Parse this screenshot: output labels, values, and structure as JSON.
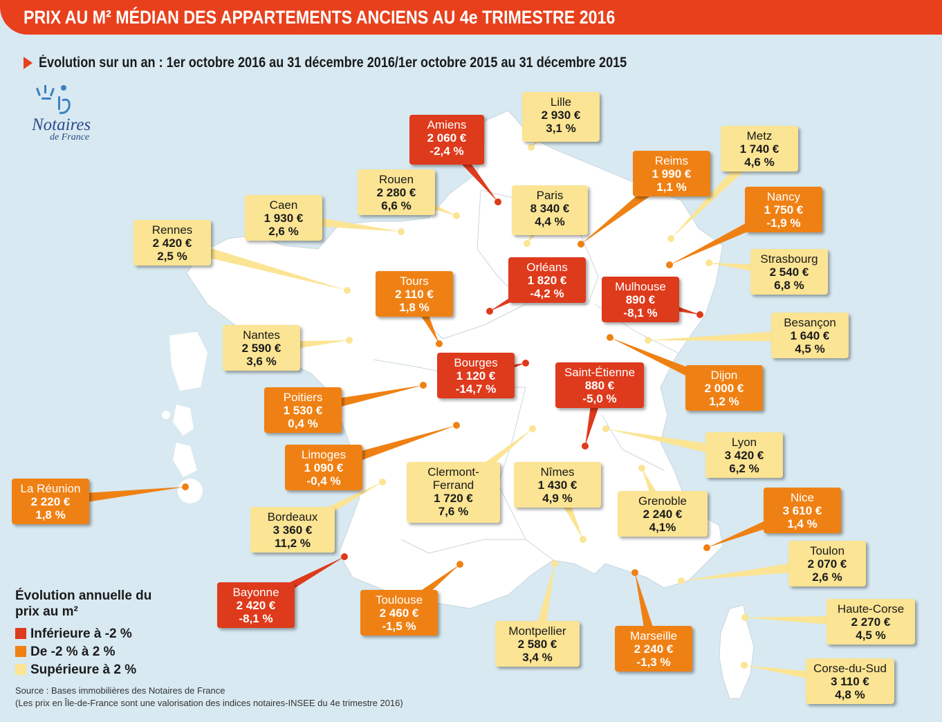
{
  "header": {
    "title": "PRIX AU M² MÉDIAN DES APPARTEMENTS ANCIENS AU 4e TRIMESTRE 2016",
    "subtitle": "Évolution sur un an : 1er octobre 2016 au 31 décembre 2016/1er octobre 2015 au 31 décembre 2015"
  },
  "logo": {
    "name": "Notaires",
    "sub": "de France"
  },
  "colors": {
    "red": "#de3a1c",
    "orange": "#ef8114",
    "yellow": "#fbe493",
    "land": "#ffffff",
    "sea": "#d8e9f1",
    "title_bg": "#e8401c"
  },
  "cities": [
    {
      "id": "amiens",
      "city": "Amiens",
      "price": "2 060 €",
      "pct": "-2,4 %",
      "cat": "red"
    },
    {
      "id": "lille",
      "city": "Lille",
      "price": "2 930 €",
      "pct": "3,1 %",
      "cat": "yellow"
    },
    {
      "id": "metz",
      "city": "Metz",
      "price": "1 740 €",
      "pct": "4,6 %",
      "cat": "yellow"
    },
    {
      "id": "reims",
      "city": "Reims",
      "price": "1 990 €",
      "pct": "1,1 %",
      "cat": "orange"
    },
    {
      "id": "rouen",
      "city": "Rouen",
      "price": "2 280 €",
      "pct": "6,6 %",
      "cat": "yellow"
    },
    {
      "id": "paris",
      "city": "Paris",
      "price": "8 340 €",
      "pct": "4,4 %",
      "cat": "yellow"
    },
    {
      "id": "nancy",
      "city": "Nancy",
      "price": "1 750 €",
      "pct": "-1,9 %",
      "cat": "orange"
    },
    {
      "id": "caen",
      "city": "Caen",
      "price": "1 930 €",
      "pct": "2,6 %",
      "cat": "yellow"
    },
    {
      "id": "rennes",
      "city": "Rennes",
      "price": "2 420 €",
      "pct": "2,5 %",
      "cat": "yellow"
    },
    {
      "id": "strasbourg",
      "city": "Strasbourg",
      "price": "2 540 €",
      "pct": "6,8 %",
      "cat": "yellow"
    },
    {
      "id": "orleans",
      "city": "Orléans",
      "price": "1 820 €",
      "pct": "-4,2 %",
      "cat": "red"
    },
    {
      "id": "tours",
      "city": "Tours",
      "price": "2 110 €",
      "pct": "1,8 %",
      "cat": "orange"
    },
    {
      "id": "mulhouse",
      "city": "Mulhouse",
      "price": "890 €",
      "pct": "-8,1 %",
      "cat": "red"
    },
    {
      "id": "besancon",
      "city": "Besançon",
      "price": "1 640 €",
      "pct": "4,5 %",
      "cat": "yellow"
    },
    {
      "id": "nantes",
      "city": "Nantes",
      "price": "2 590 €",
      "pct": "3,6 %",
      "cat": "yellow"
    },
    {
      "id": "bourges",
      "city": "Bourges",
      "price": "1 120 €",
      "pct": "-14,7 %",
      "cat": "red"
    },
    {
      "id": "saintetienne",
      "city": "Saint-Étienne",
      "price": "880 €",
      "pct": "-5,0 %",
      "cat": "red"
    },
    {
      "id": "dijon",
      "city": "Dijon",
      "price": "2 000 €",
      "pct": "1,2 %",
      "cat": "orange"
    },
    {
      "id": "poitiers",
      "city": "Poitiers",
      "price": "1 530 €",
      "pct": "0,4 %",
      "cat": "orange"
    },
    {
      "id": "lyon",
      "city": "Lyon",
      "price": "3 420 €",
      "pct": "6,2 %",
      "cat": "yellow"
    },
    {
      "id": "limoges",
      "city": "Limoges",
      "price": "1 090 €",
      "pct": "-0,4 %",
      "cat": "orange"
    },
    {
      "id": "clermont",
      "city": "Clermont-Ferrand",
      "price": "1 720 €",
      "pct": "7,6 %",
      "cat": "yellow"
    },
    {
      "id": "nimes",
      "city": "Nîmes",
      "price": "1 430 €",
      "pct": "4,9 %",
      "cat": "yellow"
    },
    {
      "id": "reunion",
      "city": "La Réunion",
      "price": "2 220 €",
      "pct": "1,8 %",
      "cat": "orange"
    },
    {
      "id": "grenoble",
      "city": "Grenoble",
      "price": "2 240 €",
      "pct": "4,1%",
      "cat": "yellow"
    },
    {
      "id": "nice",
      "city": "Nice",
      "price": "3 610 €",
      "pct": "1,4 %",
      "cat": "orange"
    },
    {
      "id": "bordeaux",
      "city": "Bordeaux",
      "price": "3 360 €",
      "pct": "11,2 %",
      "cat": "yellow"
    },
    {
      "id": "toulon",
      "city": "Toulon",
      "price": "2 070 €",
      "pct": "2,6 %",
      "cat": "yellow"
    },
    {
      "id": "bayonne",
      "city": "Bayonne",
      "price": "2 420 €",
      "pct": "-8,1 %",
      "cat": "red"
    },
    {
      "id": "toulouse",
      "city": "Toulouse",
      "price": "2 460 €",
      "pct": "-1,5 %",
      "cat": "orange"
    },
    {
      "id": "hautecorse",
      "city": "Haute-Corse",
      "price": "2 270 €",
      "pct": "4,5 %",
      "cat": "yellow"
    },
    {
      "id": "montpellier",
      "city": "Montpellier",
      "price": "2 580 €",
      "pct": "3,4 %",
      "cat": "yellow"
    },
    {
      "id": "marseille",
      "city": "Marseille",
      "price": "2 240 €",
      "pct": "-1,3 %",
      "cat": "orange"
    },
    {
      "id": "corsesud",
      "city": "Corse-du-Sud",
      "price": "3 110 €",
      "pct": "4,8 %",
      "cat": "yellow"
    }
  ],
  "legend": {
    "title": "Évolution annuelle du prix au m²",
    "items": [
      {
        "label": "Inférieure à -2 %",
        "cat": "red"
      },
      {
        "label": "De -2 % à 2 %",
        "cat": "orange"
      },
      {
        "label": "Supérieure à 2 %",
        "cat": "yellow"
      }
    ]
  },
  "source": {
    "line1": "Source : Bases immobilières des Notaires de France",
    "line2": "(Les prix en Île-de-France sont une valorisation des indices notaires-INSEE du 4e trimestre 2016)"
  }
}
